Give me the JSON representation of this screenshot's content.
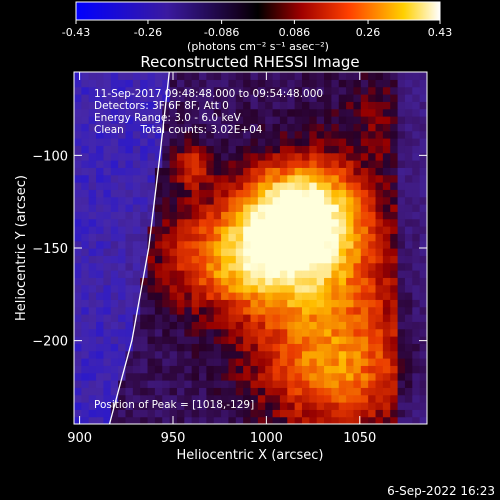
{
  "colorbar": {
    "ticks": [
      "-0.43",
      "-0.26",
      "-0.086",
      "0.086",
      "0.26",
      "0.43"
    ],
    "tick_values": [
      -0.43,
      -0.26,
      -0.086,
      0.086,
      0.26,
      0.43
    ],
    "range": [
      -0.43,
      0.43
    ],
    "units": "(photons cm⁻² s⁻¹ asec⁻²)",
    "colormap": "blue-black-red-yellow-white"
  },
  "chart_data": {
    "type": "heatmap",
    "title": "Reconstructed RHESSI Image",
    "xlabel": "Heliocentric X (arcsec)",
    "ylabel": "Heliocentric Y (arcsec)",
    "xlim": [
      897,
      1086
    ],
    "ylim": [
      -245,
      -55
    ],
    "xticks": [
      900,
      950,
      1000,
      1050
    ],
    "yticks": [
      -100,
      -150,
      -200
    ],
    "peak": [
      1018,
      -129
    ],
    "limb_curve": [
      [
        916,
        -245
      ],
      [
        928,
        -200
      ],
      [
        937,
        -150
      ],
      [
        943,
        -100
      ],
      [
        948,
        -55
      ]
    ],
    "annotations": [
      "11-Sep-2017 09:48:48.000 to 09:54:48.000",
      "Detectors: 3F 6F 8F, Att 0",
      "Energy Range: 3.0 - 6.0 keV",
      "Clean     Total counts: 3.02E+04",
      "Position of Peak = [1018,-129]"
    ]
  },
  "footer": {
    "timestamp": "6-Sep-2022 16:23"
  }
}
